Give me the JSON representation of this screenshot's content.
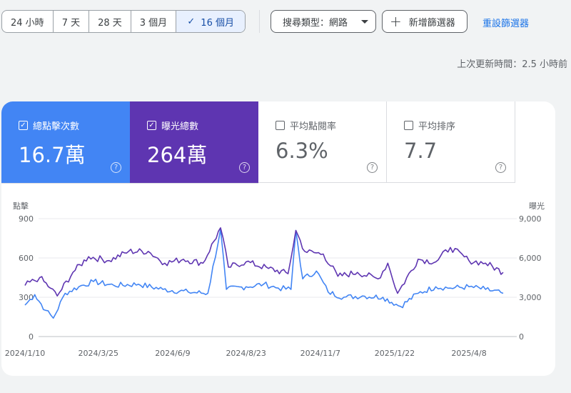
{
  "toolbar": {
    "ranges": [
      {
        "label": "24 小時",
        "active": false
      },
      {
        "label": "7 天",
        "active": false
      },
      {
        "label": "28 天",
        "active": false
      },
      {
        "label": "3 個月",
        "active": false
      },
      {
        "label": "16 個月",
        "active": true
      }
    ],
    "search_type": "搜尋類型：網路",
    "add_filter": "新增篩選器",
    "reset_filters": "重設篩選器"
  },
  "last_updated": "上次更新時間：2.5 小時前",
  "metrics": {
    "clicks": {
      "label": "總點擊次數",
      "value": "16.7萬",
      "checked": true,
      "color": "#4285f4"
    },
    "impressions": {
      "label": "曝光總數",
      "value": "264萬",
      "checked": true,
      "color": "#5e35b1"
    },
    "ctr": {
      "label": "平均點閱率",
      "value": "6.3%",
      "checked": false
    },
    "position": {
      "label": "平均排序",
      "value": "7.7",
      "checked": false
    }
  },
  "chart_data": {
    "type": "line",
    "left_axis_label": "點擊",
    "right_axis_label": "曝光",
    "left_ticks": [
      "0",
      "300",
      "600",
      "900"
    ],
    "right_ticks": [
      "0",
      "3,000",
      "6,000",
      "9,000"
    ],
    "ylim_left": [
      0,
      900
    ],
    "ylim_right": [
      0,
      9000
    ],
    "x_ticks": [
      "2024/1/10",
      "2024/3/25",
      "2024/6/9",
      "2024/8/23",
      "2024/11/7",
      "2025/1/22",
      "2025/4/8"
    ],
    "x_range": [
      "2024/1/10",
      "2025/5/13"
    ],
    "grid": true,
    "series": [
      {
        "name": "總點擊次數",
        "axis": "left",
        "color": "#4285f4",
        "points": [
          [
            "2024/1/10",
            240
          ],
          [
            "2024/1/20",
            320
          ],
          [
            "2024/1/31",
            200
          ],
          [
            "2024/2/8",
            140
          ],
          [
            "2024/2/20",
            330
          ],
          [
            "2024/3/5",
            380
          ],
          [
            "2024/3/20",
            420
          ],
          [
            "2024/4/10",
            390
          ],
          [
            "2024/5/5",
            400
          ],
          [
            "2024/5/30",
            360
          ],
          [
            "2024/6/25",
            340
          ],
          [
            "2024/7/15",
            330
          ],
          [
            "2024/7/28",
            820
          ],
          [
            "2024/8/3",
            360
          ],
          [
            "2024/8/23",
            380
          ],
          [
            "2024/9/10",
            400
          ],
          [
            "2024/9/25",
            370
          ],
          [
            "2024/10/8",
            360
          ],
          [
            "2024/10/13",
            810
          ],
          [
            "2024/10/20",
            440
          ],
          [
            "2024/11/3",
            500
          ],
          [
            "2024/11/15",
            340
          ],
          [
            "2024/12/1",
            300
          ],
          [
            "2024/12/20",
            310
          ],
          [
            "2025/1/10",
            300
          ],
          [
            "2025/1/28",
            230
          ],
          [
            "2025/2/15",
            330
          ],
          [
            "2025/3/5",
            380
          ],
          [
            "2025/3/20",
            370
          ],
          [
            "2025/4/8",
            380
          ],
          [
            "2025/4/25",
            360
          ],
          [
            "2025/5/13",
            330
          ]
        ]
      },
      {
        "name": "曝光總數",
        "axis": "right",
        "color": "#5e35b1",
        "points": [
          [
            "2024/1/10",
            3900
          ],
          [
            "2024/1/25",
            4500
          ],
          [
            "2024/2/5",
            3700
          ],
          [
            "2024/2/12",
            3100
          ],
          [
            "2024/2/28",
            4900
          ],
          [
            "2024/3/15",
            6100
          ],
          [
            "2024/4/5",
            5800
          ],
          [
            "2024/4/25",
            6500
          ],
          [
            "2024/5/15",
            6500
          ],
          [
            "2024/6/1",
            5600
          ],
          [
            "2024/6/20",
            5900
          ],
          [
            "2024/7/10",
            5600
          ],
          [
            "2024/7/28",
            8300
          ],
          [
            "2024/8/5",
            5300
          ],
          [
            "2024/8/23",
            5700
          ],
          [
            "2024/9/15",
            5200
          ],
          [
            "2024/10/5",
            4800
          ],
          [
            "2024/10/13",
            8100
          ],
          [
            "2024/10/22",
            6500
          ],
          [
            "2024/11/10",
            6300
          ],
          [
            "2024/11/25",
            4600
          ],
          [
            "2024/12/15",
            4900
          ],
          [
            "2025/1/5",
            4400
          ],
          [
            "2025/1/15",
            5600
          ],
          [
            "2025/1/25",
            3300
          ],
          [
            "2025/2/15",
            5900
          ],
          [
            "2025/3/5",
            5700
          ],
          [
            "2025/3/20",
            6800
          ],
          [
            "2025/4/8",
            5800
          ],
          [
            "2025/4/25",
            5600
          ],
          [
            "2025/5/13",
            4900
          ]
        ]
      }
    ]
  }
}
